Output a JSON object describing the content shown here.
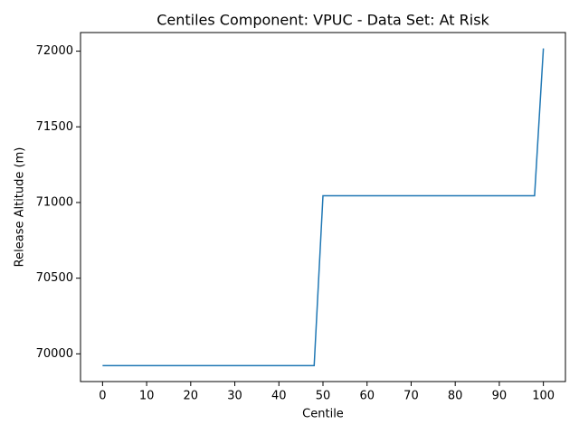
{
  "chart_data": {
    "type": "line",
    "title": "Centiles Component: VPUC - Data Set: At Risk",
    "x_label": "Centile",
    "y_label": "Release Altitude (m)",
    "x": [
      0,
      48,
      50,
      98,
      100
    ],
    "series": [
      {
        "color": "#1f77b4",
        "values": [
          69922,
          69922,
          71045,
          71045,
          72018
        ]
      }
    ],
    "xlim": [
      -5,
      105
    ],
    "ylim": [
      69817,
      72123
    ],
    "xticks": [
      0,
      10,
      20,
      30,
      40,
      50,
      60,
      70,
      80,
      90,
      100
    ],
    "yticks": [
      70000,
      70500,
      71000,
      71500,
      72000
    ]
  }
}
